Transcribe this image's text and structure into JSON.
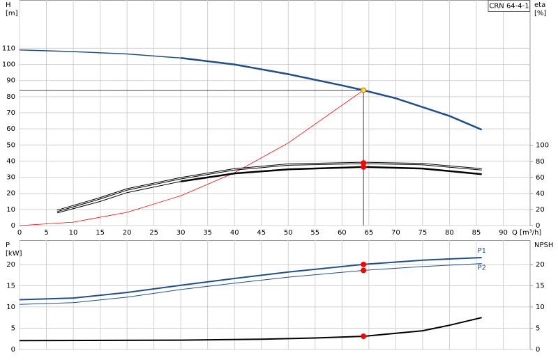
{
  "chart_data": [
    {
      "type": "line",
      "title": "CRN 64-4-1",
      "y_label": "H",
      "y_unit": "[m]",
      "y2_label": "eta",
      "y2_unit": "[%]",
      "x_label": "Q [m³/h]",
      "xlim": [
        0,
        95
      ],
      "xticks": [
        0,
        5,
        10,
        15,
        20,
        25,
        30,
        35,
        40,
        45,
        50,
        55,
        60,
        65,
        70,
        75,
        80,
        85,
        90
      ],
      "ylim": [
        0,
        140
      ],
      "yticks": [
        0,
        10,
        20,
        30,
        40,
        50,
        60,
        70,
        80,
        90,
        100,
        110
      ],
      "y2lim": [
        0,
        281
      ],
      "y2ticks": [
        0,
        20,
        40,
        60,
        80,
        100
      ],
      "grid": true,
      "reference": {
        "x": 64,
        "y": 84
      },
      "series": [
        {
          "color": "#1f4e8c",
          "width": 1.5,
          "x": [
            0,
            10,
            20,
            30
          ],
          "values": [
            109,
            108,
            106.5,
            104
          ]
        },
        {
          "color": "#1f4e8c",
          "width": 2.5,
          "x": [
            30,
            40,
            50,
            60,
            64,
            70,
            80,
            86
          ],
          "values": [
            104,
            100,
            94,
            87,
            84,
            79,
            68,
            59.5
          ]
        },
        {
          "color": "#ff0000",
          "width": 0.8,
          "x": [
            0,
            10,
            20,
            30,
            40,
            50,
            64
          ],
          "values": [
            0,
            2.1,
            8.2,
            18.5,
            32.8,
            51.3,
            84
          ]
        },
        {
          "color": "#000000",
          "width": 3,
          "style": "double",
          "axis": "y2",
          "x": [
            7,
            15,
            20,
            30,
            40,
            50,
            64,
            75,
            86
          ],
          "values": [
            18.3,
            34,
            45,
            59,
            70,
            76,
            78,
            76.5,
            70
          ]
        },
        {
          "color": "#000000",
          "width": 1,
          "axis": "y2",
          "x": [
            7,
            15,
            20,
            30
          ],
          "values": [
            15.7,
            30,
            41,
            55
          ]
        },
        {
          "color": "#000000",
          "width": 2.5,
          "axis": "y2",
          "x": [
            30,
            40,
            50,
            64,
            75,
            86
          ],
          "values": [
            55,
            65,
            70,
            73,
            71,
            64
          ]
        },
        {
          "color": "#ff0000",
          "marker": true,
          "axis": "y2",
          "x": [
            64
          ],
          "values": [
            78
          ]
        },
        {
          "color": "#ff0000",
          "marker": true,
          "axis": "y2",
          "x": [
            64
          ],
          "values": [
            73
          ]
        },
        {
          "color": "#ffd84a",
          "marker": true,
          "x": [
            64
          ],
          "values": [
            84
          ]
        }
      ]
    },
    {
      "type": "line",
      "y_label": "P",
      "y_unit": "[kW]",
      "y2_label": "NPSH",
      "xlim": [
        0,
        95
      ],
      "xticks": [
        0,
        5,
        10,
        15,
        20,
        25,
        30,
        35,
        40,
        45,
        50,
        55,
        60,
        65,
        70,
        75,
        80,
        85,
        90
      ],
      "ylim": [
        0,
        25.7
      ],
      "yticks": [
        0,
        5,
        10,
        15,
        20
      ],
      "y2lim": [
        0,
        25.7
      ],
      "y2ticks": [
        0,
        5,
        10,
        15,
        20
      ],
      "grid": true,
      "series": [
        {
          "name": "P1",
          "color": "#1f4e8c",
          "width": 2,
          "x": [
            0,
            10,
            20,
            30,
            40,
            50,
            64,
            75,
            86
          ],
          "values": [
            11.7,
            12.1,
            13.4,
            15.1,
            16.7,
            18.2,
            20,
            21,
            21.6
          ]
        },
        {
          "name": "P2",
          "color": "#1f4e8c",
          "width": 1,
          "x": [
            0,
            10,
            20,
            30,
            40,
            50,
            64,
            75,
            86
          ],
          "values": [
            10.6,
            11,
            12.3,
            14.1,
            15.6,
            17,
            18.6,
            19.5,
            20.2
          ]
        },
        {
          "color": "#000000",
          "width": 2,
          "axis": "y2",
          "x": [
            0,
            30,
            45,
            55,
            64,
            75,
            80,
            86
          ],
          "values": [
            2.1,
            2.2,
            2.4,
            2.7,
            3.1,
            4.4,
            5.7,
            7.5
          ]
        },
        {
          "color": "#ff0000",
          "marker": true,
          "x": [
            64
          ],
          "values": [
            20
          ]
        },
        {
          "color": "#ff0000",
          "marker": true,
          "x": [
            64
          ],
          "values": [
            18.6
          ]
        },
        {
          "color": "#ff0000",
          "marker": true,
          "axis": "y2",
          "x": [
            64
          ],
          "values": [
            3.1
          ]
        }
      ]
    }
  ]
}
